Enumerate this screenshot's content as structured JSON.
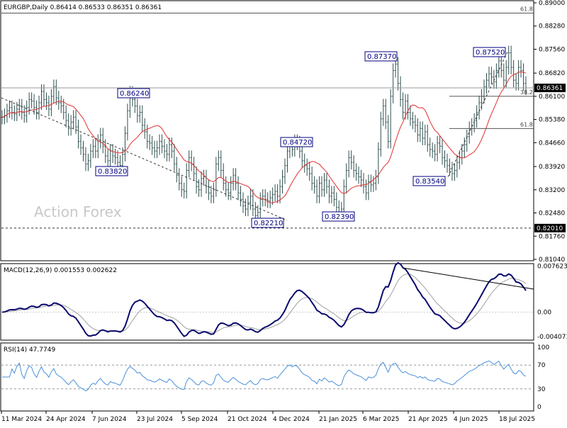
{
  "window": {
    "symbol_info": "EURGBP,Daily  0.86414 0.86533 0.86351 0.86361",
    "watermark": "Action Forex"
  },
  "colors": {
    "bars": "#2f4f4f",
    "ma": "#e03030",
    "macd": "#0a0a6e",
    "signal": "#a0a0a0",
    "rsi": "#4a90d9",
    "frame": "#000000",
    "label_border": "#000080",
    "label_text": "#000080",
    "current_price_bg": "#000000"
  },
  "chart_data": [
    {
      "type": "candlestick",
      "title": "EURGBP,Daily",
      "ohlc": {
        "open": 0.86414,
        "high": 0.86533,
        "low": 0.86351,
        "close": 0.86361
      },
      "y_ticks": [
        "0.89000",
        "0.88280",
        "0.87560",
        "0.86820",
        "0.86100",
        "0.85380",
        "0.84660",
        "0.83920",
        "0.83200",
        "0.82480",
        "0.81760",
        "0.81040"
      ],
      "ylim": [
        0.8104,
        0.89
      ],
      "current_price": "0.86361",
      "support_level": "0.82010",
      "x_ticks": [
        "11 Mar 2024",
        "24 Apr 2024",
        "7 Jun 2024",
        "23 Jul 2024",
        "5 Sep 2024",
        "21 Oct 2024",
        "4 Dec 2024",
        "21 Jan 2025",
        "6 Mar 2025",
        "21 Apr 2025",
        "4 Jun 2025",
        "18 Jul 2025"
      ],
      "pivot_labels": [
        "0.86240",
        "0.83820",
        "0.82210",
        "0.84720",
        "0.82390",
        "0.87370",
        "0.83540",
        "0.87520"
      ],
      "fib_labels": [
        "61.8",
        "38.2",
        "61.8"
      ],
      "series": [
        {
          "name": "",
          "close": [
            0.8545,
            0.855,
            0.8565,
            0.8575,
            0.856,
            0.8555,
            0.857,
            0.858,
            0.856,
            0.855,
            0.8575,
            0.86,
            0.8595,
            0.8575,
            0.856,
            0.859,
            0.8625,
            0.86,
            0.859,
            0.857,
            0.861,
            0.864,
            0.8605,
            0.859,
            0.858,
            0.856,
            0.8535,
            0.851,
            0.853,
            0.8545,
            0.8515,
            0.847,
            0.845,
            0.843,
            0.84,
            0.841,
            0.844,
            0.8455,
            0.844,
            0.847,
            0.849,
            0.8455,
            0.8425,
            0.841,
            0.844,
            0.8425,
            0.842,
            0.8405,
            0.8395,
            0.843,
            0.8495,
            0.8565,
            0.862,
            0.86,
            0.858,
            0.855,
            0.856,
            0.852,
            0.85,
            0.847,
            0.8465,
            0.845,
            0.844,
            0.845,
            0.847,
            0.8455,
            0.844,
            0.843,
            0.846,
            0.844,
            0.84,
            0.8365,
            0.834,
            0.832,
            0.8315,
            0.838,
            0.842,
            0.84,
            0.837,
            0.833,
            0.832,
            0.8355,
            0.836,
            0.833,
            0.831,
            0.83,
            0.832,
            0.84,
            0.842,
            0.838,
            0.834,
            0.832,
            0.831,
            0.834,
            0.8365,
            0.834,
            0.831,
            0.829,
            0.827,
            0.826,
            0.828,
            0.83,
            0.826,
            0.824,
            0.825,
            0.829,
            0.83,
            0.829,
            0.8285,
            0.8295,
            0.8305,
            0.8315,
            0.83,
            0.833,
            0.836,
            0.8395,
            0.844,
            0.846,
            0.8445,
            0.847,
            0.8465,
            0.844,
            0.841,
            0.8395,
            0.8385,
            0.837,
            0.834,
            0.833,
            0.83,
            0.834,
            0.832,
            0.835,
            0.833,
            0.83,
            0.831,
            0.829,
            0.8265,
            0.825,
            0.826,
            0.833,
            0.838,
            0.842,
            0.8405,
            0.838,
            0.837,
            0.836,
            0.835,
            0.833,
            0.831,
            0.8345,
            0.8335,
            0.834,
            0.836,
            0.8445,
            0.854,
            0.858,
            0.853,
            0.847,
            0.861,
            0.869,
            0.871,
            0.865,
            0.86,
            0.856,
            0.8595,
            0.856,
            0.854,
            0.853,
            0.852,
            0.849,
            0.851,
            0.848,
            0.85,
            0.846,
            0.8445,
            0.844,
            0.843,
            0.8465,
            0.8455,
            0.842,
            0.841,
            0.8395,
            0.8385,
            0.837,
            0.838,
            0.8405,
            0.842,
            0.844,
            0.846,
            0.8485,
            0.851,
            0.852,
            0.8535,
            0.856,
            0.859,
            0.861,
            0.864,
            0.866,
            0.868,
            0.867,
            0.8655,
            0.869,
            0.872,
            0.869,
            0.866,
            0.87,
            0.8745,
            0.87,
            0.866,
            0.865,
            0.87,
            0.869,
            0.865,
            0.8636
          ]
        }
      ]
    },
    {
      "type": "line",
      "title": "MACD(12,26,9) 0.001553 0.002622",
      "y_ticks": [
        "0.007623",
        "0.00",
        "-0.004073"
      ],
      "ylim": [
        -0.0044,
        0.0078
      ]
    },
    {
      "type": "line",
      "title": "RSI(14) 47.7749",
      "y_ticks": [
        "100",
        "70",
        "30",
        "0"
      ],
      "ylim": [
        0,
        100
      ],
      "levels": [
        70,
        30
      ]
    }
  ]
}
